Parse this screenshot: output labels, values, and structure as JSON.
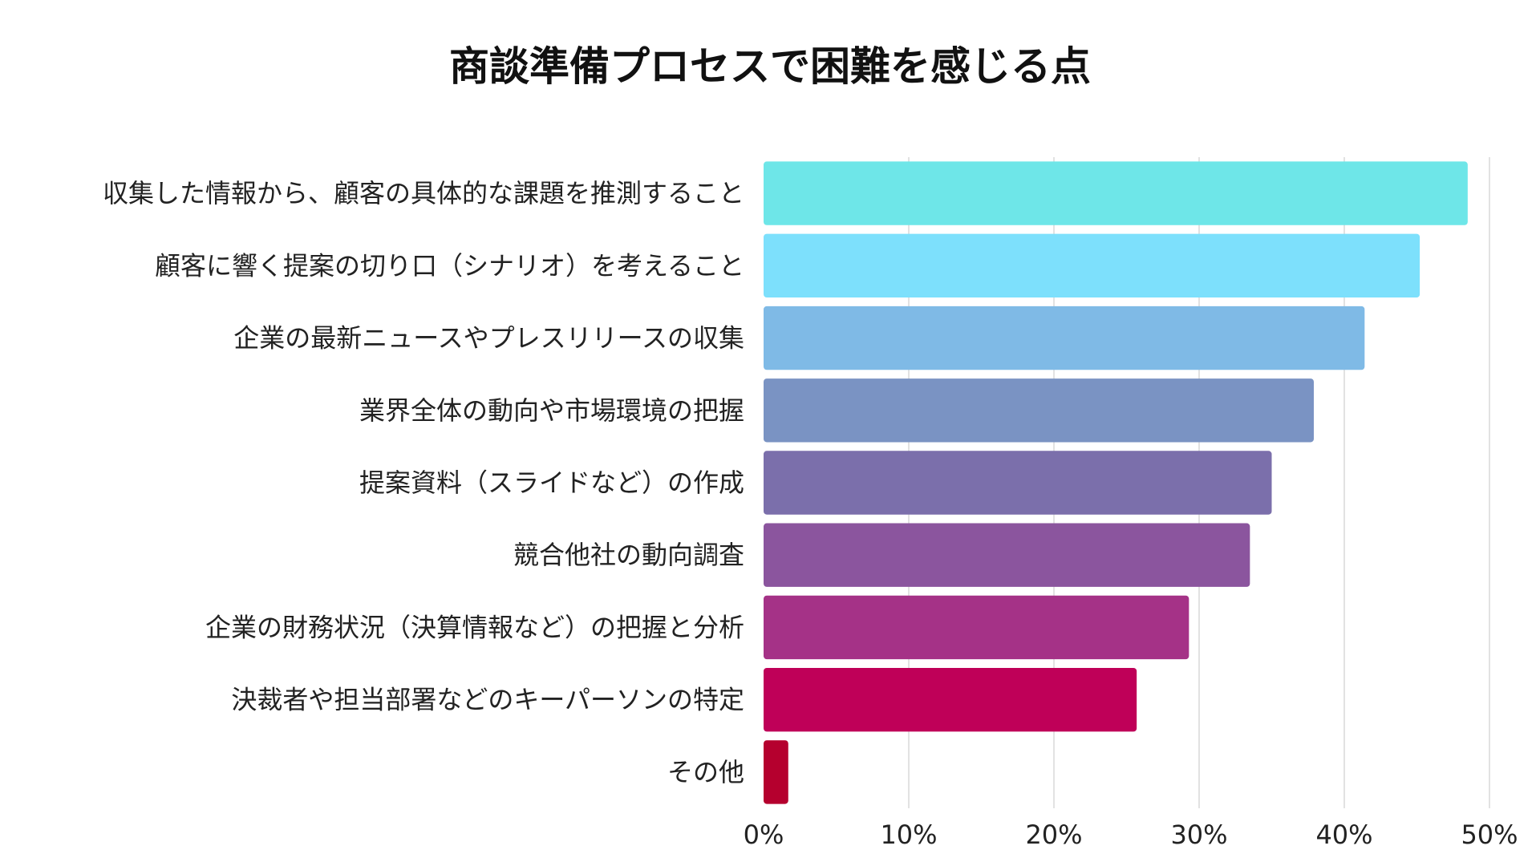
{
  "chart_data": {
    "type": "bar",
    "orientation": "horizontal",
    "title": "商談準備プロセスで困難を感じる点",
    "xlabel": "",
    "ylabel": "",
    "xlim": [
      0,
      50
    ],
    "x_ticks": [
      0,
      10,
      20,
      30,
      40,
      50
    ],
    "x_tick_labels": [
      "0%",
      "10%",
      "20%",
      "30%",
      "40%",
      "50%"
    ],
    "grid": "vertical",
    "legend": "none",
    "categories": [
      "収集した情報から、顧客の具体的な課題を推測すること",
      "顧客に響く提案の切り口（シナリオ）を考えること",
      "企業の最新ニュースやプレスリリースの収集",
      "業界全体の動向や市場環境の把握",
      "提案資料（スライドなど）の作成",
      "競合他社の動向調査",
      "企業の財務状況（決算情報など）の把握と分析",
      "決裁者や担当部署などのキーパーソンの特定",
      "その他"
    ],
    "values": [
      48.5,
      45.2,
      41.4,
      37.9,
      35.0,
      33.5,
      29.3,
      25.7,
      1.7
    ],
    "colors": [
      "#6ee6e8",
      "#7de0fc",
      "#7fbae6",
      "#7a93c3",
      "#7b6fab",
      "#8b559e",
      "#a53287",
      "#bf0058",
      "#b5002e"
    ]
  }
}
